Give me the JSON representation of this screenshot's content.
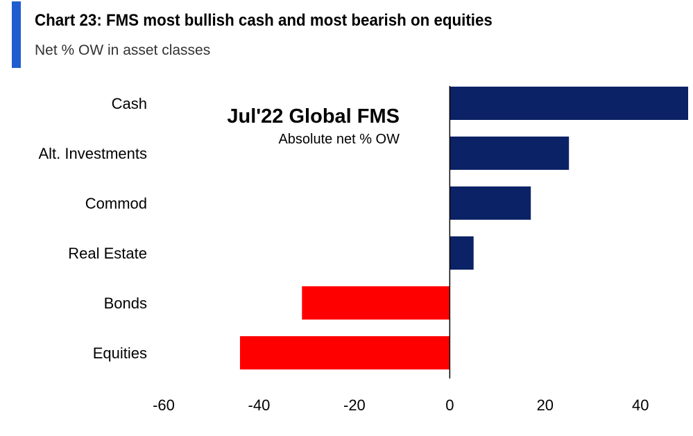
{
  "header": {
    "title": "Chart 23: FMS most bullish cash and most bearish on equities",
    "subtitle": "Net % OW in asset classes"
  },
  "colors": {
    "accent": "#1f5ccf",
    "positive": "#0c2266",
    "negative": "#ff0000"
  },
  "chart_data": {
    "type": "bar",
    "orientation": "horizontal",
    "title": "Chart 23: FMS most bullish cash and most bearish on equities",
    "subtitle": "Net % OW in asset classes",
    "annotation": {
      "title": "Jul'22 Global FMS",
      "subtitle": "Absolute net % OW"
    },
    "categories": [
      "Cash",
      "Alt. Investments",
      "Commod",
      "Real Estate",
      "Bonds",
      "Equities"
    ],
    "values": [
      50,
      25,
      17,
      5,
      -31,
      -44
    ],
    "xlim": [
      -60,
      50
    ],
    "xticks": [
      -60,
      -40,
      -20,
      0,
      20,
      40
    ],
    "xlabel": "",
    "ylabel": "",
    "grid": false
  }
}
